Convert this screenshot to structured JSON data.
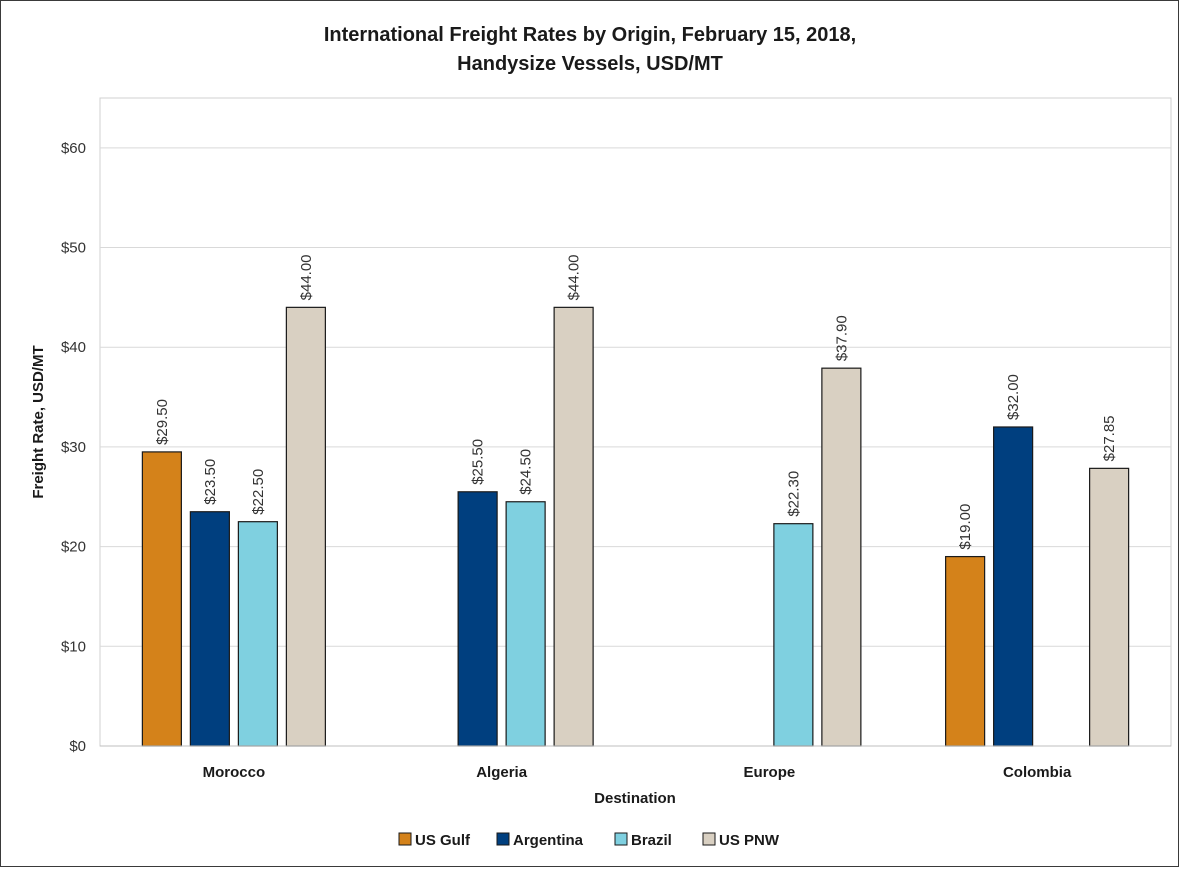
{
  "chart_data": {
    "type": "bar",
    "title": [
      "International Freight Rates by Origin, February 15, 2018,",
      "Handysize Vessels, USD/MT"
    ],
    "xlabel": "Destination",
    "ylabel": "Freight Rate, USD/MT",
    "ylim": [
      0,
      65
    ],
    "yticks": [
      0,
      10,
      20,
      30,
      40,
      50,
      60
    ],
    "ytick_labels": [
      "$0",
      "$10",
      "$20",
      "$30",
      "$40",
      "$50",
      "$60"
    ],
    "categories": [
      "Morocco",
      "Algeria",
      "Europe",
      "Colombia"
    ],
    "grid": true,
    "legend_position": "bottom",
    "series": [
      {
        "name": "US Gulf",
        "color": "#D4821A",
        "values": [
          29.5,
          null,
          null,
          19.0
        ],
        "labels": [
          "$29.50",
          null,
          null,
          "$19.00"
        ]
      },
      {
        "name": "Argentina",
        "color": "#003F7F",
        "values": [
          23.5,
          25.5,
          null,
          32.0
        ],
        "labels": [
          "$23.50",
          "$25.50",
          null,
          "$32.00"
        ]
      },
      {
        "name": "Brazil",
        "color": "#7FD0E0",
        "values": [
          22.5,
          24.5,
          22.3,
          null
        ],
        "labels": [
          "$22.50",
          "$24.50",
          "$22.30",
          null
        ]
      },
      {
        "name": "US PNW",
        "color": "#D9D0C2",
        "values": [
          44.0,
          44.0,
          37.9,
          27.85
        ],
        "labels": [
          "$44.00",
          "$44.00",
          "$37.90",
          "$27.85"
        ]
      }
    ]
  }
}
